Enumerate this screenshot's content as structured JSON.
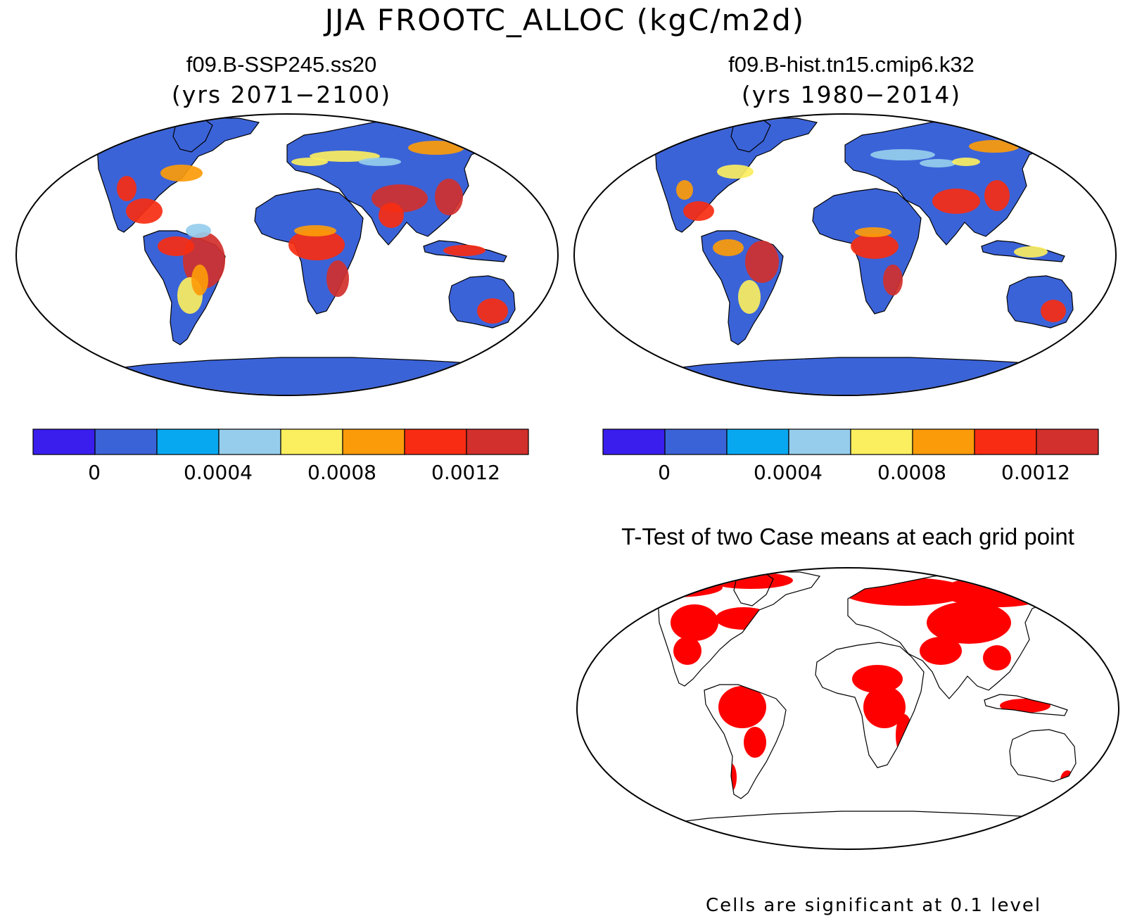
{
  "title": "JJA FROOTC_ALLOC (kgC/m2d)",
  "panels": [
    {
      "title": "f09.B-SSP245.ss20",
      "subtitle": "(yrs 2071−2100)"
    },
    {
      "title": "f09.B-hist.tn15.cmip6.k32",
      "subtitle": "(yrs 1980−2014)"
    }
  ],
  "colorbar": {
    "colors": [
      "#3a1eee",
      "#3b63d8",
      "#08a8f0",
      "#96cdec",
      "#fbee5f",
      "#fc9b0a",
      "#f72c12",
      "#d1302c"
    ],
    "tick_labels": [
      "0",
      "0.0004",
      "0.0008",
      "0.0012"
    ]
  },
  "ttest": {
    "title": "T-Test of two Case means at each grid point",
    "footnote": "Cells are significant at 0.1 level",
    "significant_color": "#ff0000"
  }
}
